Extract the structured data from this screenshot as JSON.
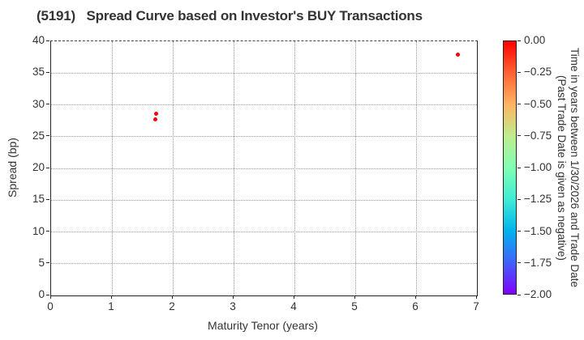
{
  "title": "(5191)   Spread Curve based on Investor's BUY Transactions",
  "chart_data": {
    "type": "scatter",
    "title": "(5191)   Spread Curve based on Investor's BUY Transactions",
    "xlabel": "Maturity Tenor (years)",
    "ylabel": "Spread (bp)",
    "xlim": [
      0,
      7
    ],
    "ylim": [
      0,
      40
    ],
    "x_ticks": [
      0,
      1,
      2,
      3,
      4,
      5,
      6,
      7
    ],
    "y_ticks": [
      0,
      5,
      10,
      15,
      20,
      25,
      30,
      35,
      40
    ],
    "grid": true,
    "grid_style": "dotted",
    "points": [
      {
        "x": 1.72,
        "y": 28.6,
        "time_value": 0.0,
        "color": "#ff0000"
      },
      {
        "x": 1.71,
        "y": 27.7,
        "time_value": 0.0,
        "color": "#ff0000"
      },
      {
        "x": 6.68,
        "y": 37.9,
        "time_value": 0.0,
        "color": "#ff0000"
      }
    ],
    "colorbar": {
      "label_line1": "Time in years between 1/30/2026 and Trade Date",
      "label_line2": "(Past Trade Date is given as negative)",
      "ticks": [
        "0.00",
        "−0.25",
        "−0.50",
        "−0.75",
        "−1.00",
        "−1.25",
        "−1.50",
        "−1.75",
        "−2.00"
      ],
      "vmax": 0.0,
      "vmin": -2.0,
      "colormap": "rainbow",
      "gradient_top_to_bottom": [
        "#ff0000",
        "#ff6232",
        "#ffb462",
        "#bfec8e",
        "#80ffb4",
        "#40ecd4",
        "#00b4ec",
        "#4062fa",
        "#8000ff"
      ]
    }
  },
  "colors": {
    "point": "#ff0000",
    "grid": "#999999",
    "axis": "#262626",
    "text": "#333333",
    "background": "#ffffff"
  }
}
